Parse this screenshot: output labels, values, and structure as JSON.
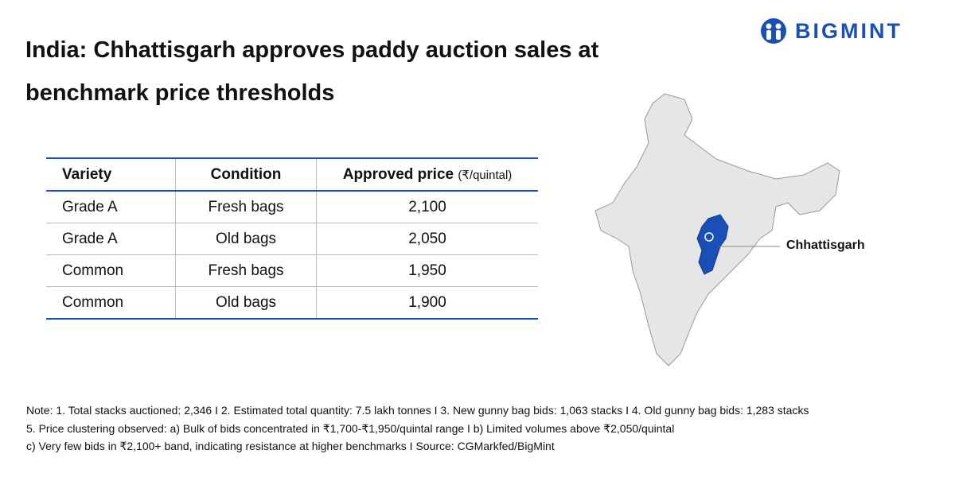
{
  "header": {
    "title": "India: Chhattisgarh approves paddy auction sales at benchmark price thresholds",
    "logo": "BIGMINT"
  },
  "table": {
    "headers": [
      "Variety",
      "Condition",
      "Approved price"
    ],
    "unit": "(₹/quintal)",
    "rows": [
      [
        "Grade A",
        "Fresh bags",
        "2,100"
      ],
      [
        "Grade A",
        "Old bags",
        "2,050"
      ],
      [
        "Common",
        "Fresh bags",
        "1,950"
      ],
      [
        "Common",
        "Old bags",
        "1,900"
      ]
    ]
  },
  "map": {
    "label": "Chhattisgarh"
  },
  "notes": [
    "Note: 1. Total stacks auctioned: 2,346  I  2. Estimated total quantity: 7.5 lakh tonnes  I  3. New gunny bag bids: 1,063 stacks  I  4. Old gunny bag bids: 1,283 stacks",
    "5. Price clustering observed:  a) Bulk of bids concentrated in ₹1,700-₹1,950/quintal range  I  b) Limited volumes above ₹2,050/quintal",
    "c) Very few bids in ₹2,100+ band, indicating resistance at higher benchmarks  I  Source: CGMarkfed/BigMint"
  ]
}
